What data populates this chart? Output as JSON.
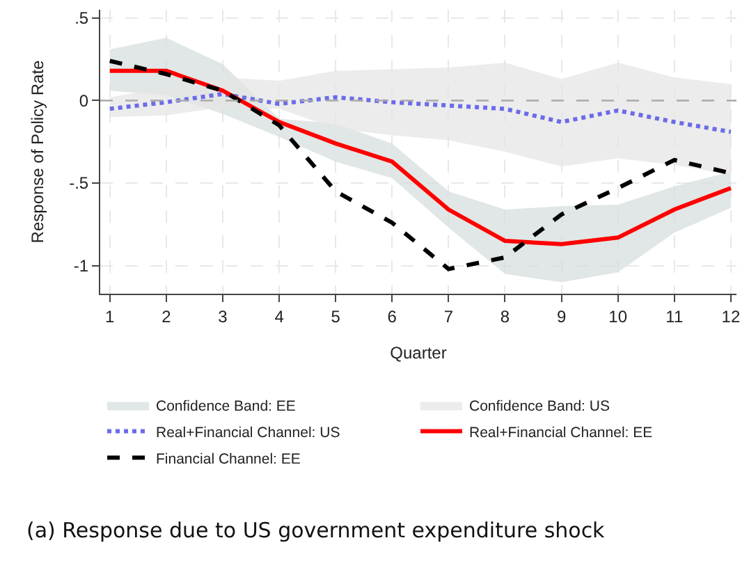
{
  "chart_data": {
    "type": "line",
    "xlabel": "Quarter",
    "ylabel": "Response of Policy Rate",
    "x": [
      1,
      2,
      3,
      4,
      5,
      6,
      7,
      8,
      9,
      10,
      11,
      12
    ],
    "xlim": [
      0.83,
      12.1
    ],
    "xticks": [
      1,
      2,
      3,
      4,
      5,
      6,
      7,
      8,
      9,
      10,
      11,
      12
    ],
    "ylim": [
      -1.17,
      0.55
    ],
    "yticks": [
      {
        "value": 0.5,
        "label": ".5"
      },
      0,
      {
        "value": -0.5,
        "label": "-.5"
      },
      -1
    ],
    "grid": true,
    "legend": "bottom",
    "ref_lines": [
      {
        "axis": "y",
        "value": 0,
        "color": "#aaaaaa",
        "line_style": "dashed"
      }
    ],
    "series": [
      {
        "name": "Confidence Band: EE",
        "color": "#d5dfde",
        "values": [
          null,
          null,
          null,
          null,
          null,
          null,
          null,
          null,
          null,
          null,
          null,
          null
        ],
        "lower": [
          0.06,
          0.03,
          -0.08,
          -0.22,
          -0.37,
          -0.47,
          -0.77,
          -1.05,
          -1.1,
          -1.04,
          -0.8,
          -0.65
        ],
        "upper": [
          0.31,
          0.38,
          0.22,
          -0.11,
          -0.14,
          -0.26,
          -0.55,
          -0.66,
          -0.64,
          -0.63,
          -0.52,
          -0.43
        ]
      },
      {
        "name": "Confidence Band: US",
        "color": "#e5e5e5",
        "values": [
          null,
          null,
          null,
          null,
          null,
          null,
          null,
          null,
          null,
          null,
          null,
          null
        ],
        "lower": [
          -0.1,
          -0.09,
          -0.04,
          -0.05,
          -0.17,
          -0.21,
          -0.24,
          -0.31,
          -0.4,
          -0.35,
          -0.39,
          -0.45
        ],
        "upper": [
          0.02,
          0.08,
          0.14,
          0.12,
          0.18,
          0.19,
          0.2,
          0.23,
          0.13,
          0.23,
          0.14,
          0.1
        ]
      },
      {
        "name": "Real+Financial Channel: US",
        "color": "#6b6bea",
        "line_style": "dotted",
        "values": [
          -0.05,
          -0.01,
          0.04,
          -0.02,
          0.02,
          -0.01,
          -0.03,
          -0.05,
          -0.13,
          -0.06,
          -0.13,
          -0.19
        ]
      },
      {
        "name": "Real+Financial Channel: EE",
        "color": "#ff0000",
        "line_style": "solid",
        "values": [
          0.18,
          0.18,
          0.06,
          -0.13,
          -0.26,
          -0.37,
          -0.66,
          -0.85,
          -0.87,
          -0.83,
          -0.66,
          -0.53
        ]
      },
      {
        "name": "Financial Channel: EE",
        "color": "#000000",
        "line_style": "dashed",
        "values": [
          0.24,
          0.16,
          0.06,
          -0.15,
          -0.55,
          -0.74,
          -1.02,
          -0.95,
          -0.69,
          -0.53,
          -0.36,
          -0.44
        ]
      }
    ],
    "annotations": [
      "(a) Response due to US government expenditure shock"
    ]
  }
}
